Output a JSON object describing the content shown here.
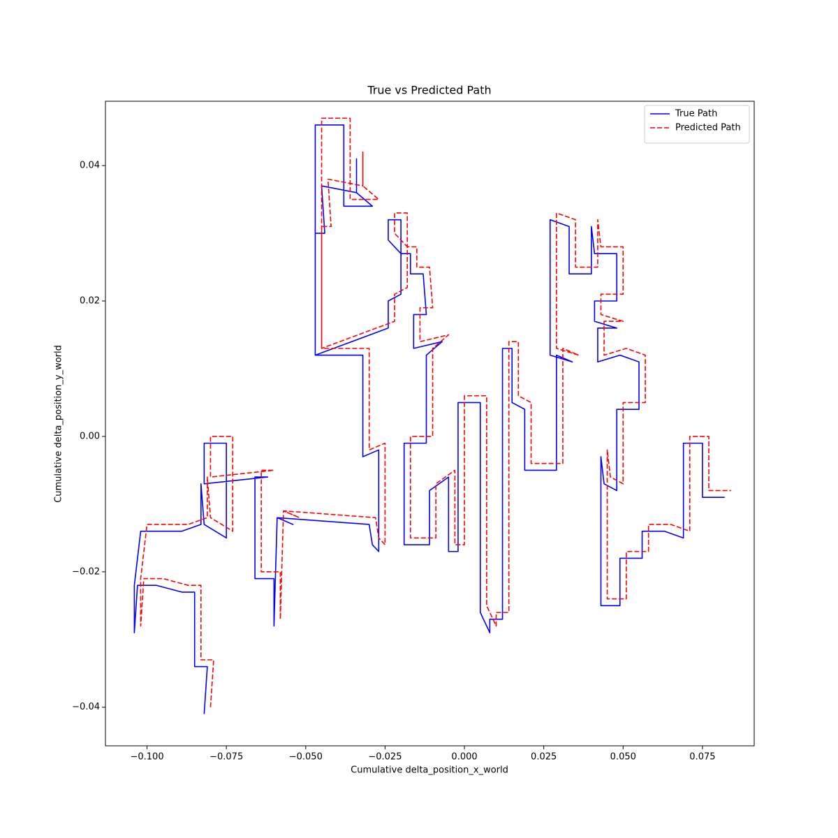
{
  "chart_data": {
    "type": "line",
    "title": "True vs Predicted Path",
    "xlabel": "Cumulative delta_position_x_world",
    "ylabel": "Cumulative delta_position_y_world",
    "xlim": [
      -0.1131,
      0.0913
    ],
    "ylim": [
      -0.0457,
      0.0495
    ],
    "xticks": [
      {
        "value": -0.1,
        "label": "−0.100"
      },
      {
        "value": -0.075,
        "label": "−0.075"
      },
      {
        "value": -0.05,
        "label": "−0.050"
      },
      {
        "value": -0.025,
        "label": "−0.025"
      },
      {
        "value": 0,
        "label": "0.000"
      },
      {
        "value": 0.025,
        "label": "0.025"
      },
      {
        "value": 0.05,
        "label": "0.050"
      },
      {
        "value": 0.075,
        "label": "0.075"
      }
    ],
    "yticks": [
      {
        "value": -0.04,
        "label": "−0.04"
      },
      {
        "value": -0.02,
        "label": "−0.02"
      },
      {
        "value": 0,
        "label": "0.00"
      },
      {
        "value": 0.02,
        "label": "0.02"
      },
      {
        "value": 0.04,
        "label": "0.04"
      }
    ],
    "legend": "upper right",
    "series": [
      {
        "name": "True Path",
        "color": "#0000ff",
        "linestyle": "solid",
        "x": [
          -0.082,
          -0.081,
          -0.085,
          -0.085,
          -0.085,
          -0.089,
          -0.097,
          -0.103,
          -0.104,
          -0.104,
          -0.102,
          -0.089,
          -0.083,
          -0.083,
          -0.082,
          -0.075,
          -0.075,
          -0.082,
          -0.082,
          -0.062,
          -0.066,
          -0.066,
          -0.06,
          -0.06,
          -0.059,
          -0.054,
          -0.059,
          -0.03,
          -0.029,
          -0.027,
          -0.027,
          -0.032,
          -0.032,
          -0.04,
          -0.047,
          -0.047,
          -0.038,
          -0.038,
          -0.029,
          -0.034,
          -0.034,
          -0.034,
          -0.045,
          -0.044,
          -0.047,
          -0.047,
          -0.024,
          -0.024,
          -0.02,
          -0.02,
          -0.024,
          -0.024,
          -0.02,
          -0.02,
          -0.017,
          -0.017,
          -0.013,
          -0.012,
          -0.016,
          -0.016,
          -0.007,
          -0.012,
          -0.012,
          -0.019,
          -0.019,
          -0.011,
          -0.011,
          -0.005,
          -0.005,
          -0.002,
          -0.002,
          0.005,
          0.005,
          0.008,
          0.008,
          0.012,
          0.012,
          0.015,
          0.015,
          0.019,
          0.019,
          0.029,
          0.029,
          0.034,
          0.027,
          0.027,
          0.033,
          0.033,
          0.04,
          0.04,
          0.041,
          0.048,
          0.048,
          0.041,
          0.041,
          0.048,
          0.042,
          0.042,
          0.049,
          0.055,
          0.055,
          0.048,
          0.048,
          0.044,
          0.043,
          0.043,
          0.049,
          0.049,
          0.056,
          0.056,
          0.063,
          0.069,
          0.069,
          0.075,
          0.075,
          0.082
        ],
        "values": [
          -0.041,
          -0.034,
          -0.034,
          -0.027,
          -0.023,
          -0.023,
          -0.022,
          -0.022,
          -0.029,
          -0.022,
          -0.014,
          -0.014,
          -0.013,
          -0.007,
          -0.013,
          -0.015,
          -0.001,
          -0.001,
          -0.007,
          -0.006,
          -0.006,
          -0.021,
          -0.021,
          -0.028,
          -0.012,
          -0.013,
          -0.012,
          -0.013,
          -0.016,
          -0.017,
          -0.002,
          -0.003,
          0.012,
          0.012,
          0.012,
          0.046,
          0.046,
          0.034,
          0.034,
          0.036,
          0.041,
          0.036,
          0.037,
          0.03,
          0.03,
          0.012,
          0.016,
          0.02,
          0.021,
          0.027,
          0.029,
          0.032,
          0.032,
          0.027,
          0.027,
          0.024,
          0.024,
          0.018,
          0.018,
          0.013,
          0.014,
          0.012,
          -0.001,
          -0.001,
          -0.016,
          -0.016,
          -0.008,
          -0.006,
          -0.017,
          -0.017,
          0.005,
          0.005,
          -0.026,
          -0.029,
          -0.027,
          -0.027,
          0.013,
          0.013,
          0.005,
          0.004,
          -0.005,
          -0.005,
          0.012,
          0.011,
          0.012,
          0.032,
          0.031,
          0.024,
          0.024,
          0.031,
          0.027,
          0.027,
          0.02,
          0.02,
          0.017,
          0.016,
          0.016,
          0.011,
          0.012,
          0.011,
          0.004,
          0.004,
          -0.008,
          -0.007,
          -0.003,
          -0.025,
          -0.025,
          -0.018,
          -0.018,
          -0.014,
          -0.014,
          -0.015,
          -0.001,
          -0.001,
          -0.009,
          -0.009
        ]
      },
      {
        "name": "Predicted Path",
        "color": "#ff0000",
        "linestyle": "dashed",
        "x": [
          -0.08,
          -0.079,
          -0.083,
          -0.083,
          -0.083,
          -0.087,
          -0.095,
          -0.101,
          -0.102,
          -0.102,
          -0.1,
          -0.087,
          -0.081,
          -0.081,
          -0.08,
          -0.073,
          -0.073,
          -0.08,
          -0.08,
          -0.06,
          -0.064,
          -0.064,
          -0.058,
          -0.058,
          -0.057,
          -0.052,
          -0.057,
          -0.028,
          -0.027,
          -0.025,
          -0.025,
          -0.03,
          -0.03,
          -0.038,
          -0.045,
          -0.045,
          -0.036,
          -0.036,
          -0.027,
          -0.032,
          -0.032,
          -0.032,
          -0.043,
          -0.042,
          -0.045,
          -0.045,
          -0.022,
          -0.022,
          -0.018,
          -0.018,
          -0.022,
          -0.022,
          -0.018,
          -0.018,
          -0.015,
          -0.015,
          -0.011,
          -0.01,
          -0.014,
          -0.014,
          -0.005,
          -0.01,
          -0.01,
          -0.017,
          -0.017,
          -0.009,
          -0.009,
          -0.003,
          -0.003,
          0.0,
          0.0,
          0.007,
          0.007,
          0.01,
          0.01,
          0.014,
          0.014,
          0.017,
          0.017,
          0.021,
          0.021,
          0.031,
          0.031,
          0.036,
          0.029,
          0.029,
          0.035,
          0.035,
          0.042,
          0.042,
          0.043,
          0.05,
          0.05,
          0.043,
          0.043,
          0.05,
          0.044,
          0.044,
          0.051,
          0.057,
          0.057,
          0.05,
          0.05,
          0.046,
          0.045,
          0.045,
          0.051,
          0.051,
          0.058,
          0.058,
          0.065,
          0.071,
          0.071,
          0.077,
          0.077,
          0.084
        ],
        "values": [
          -0.04,
          -0.033,
          -0.033,
          -0.026,
          -0.022,
          -0.022,
          -0.021,
          -0.021,
          -0.028,
          -0.021,
          -0.013,
          -0.013,
          -0.012,
          -0.006,
          -0.012,
          -0.014,
          0.0,
          0.0,
          -0.006,
          -0.005,
          -0.005,
          -0.02,
          -0.02,
          -0.027,
          -0.011,
          -0.012,
          -0.011,
          -0.012,
          -0.015,
          -0.016,
          -0.001,
          -0.002,
          0.013,
          0.013,
          0.013,
          0.047,
          0.047,
          0.035,
          0.035,
          0.037,
          0.042,
          0.037,
          0.038,
          0.031,
          0.031,
          0.013,
          0.017,
          0.021,
          0.022,
          0.028,
          0.03,
          0.033,
          0.033,
          0.028,
          0.028,
          0.025,
          0.025,
          0.019,
          0.019,
          0.014,
          0.015,
          0.013,
          0.0,
          0.0,
          -0.015,
          -0.015,
          -0.007,
          -0.005,
          -0.016,
          -0.016,
          0.006,
          0.006,
          -0.025,
          -0.028,
          -0.026,
          -0.026,
          0.014,
          0.014,
          0.006,
          0.005,
          -0.004,
          -0.004,
          0.013,
          0.012,
          0.013,
          0.033,
          0.032,
          0.025,
          0.025,
          0.032,
          0.028,
          0.028,
          0.021,
          0.021,
          0.018,
          0.017,
          0.017,
          0.012,
          0.013,
          0.012,
          0.005,
          0.005,
          -0.007,
          -0.006,
          -0.002,
          -0.024,
          -0.024,
          -0.017,
          -0.017,
          -0.013,
          -0.013,
          -0.014,
          0.0,
          0.0,
          -0.008,
          -0.008
        ]
      }
    ]
  }
}
